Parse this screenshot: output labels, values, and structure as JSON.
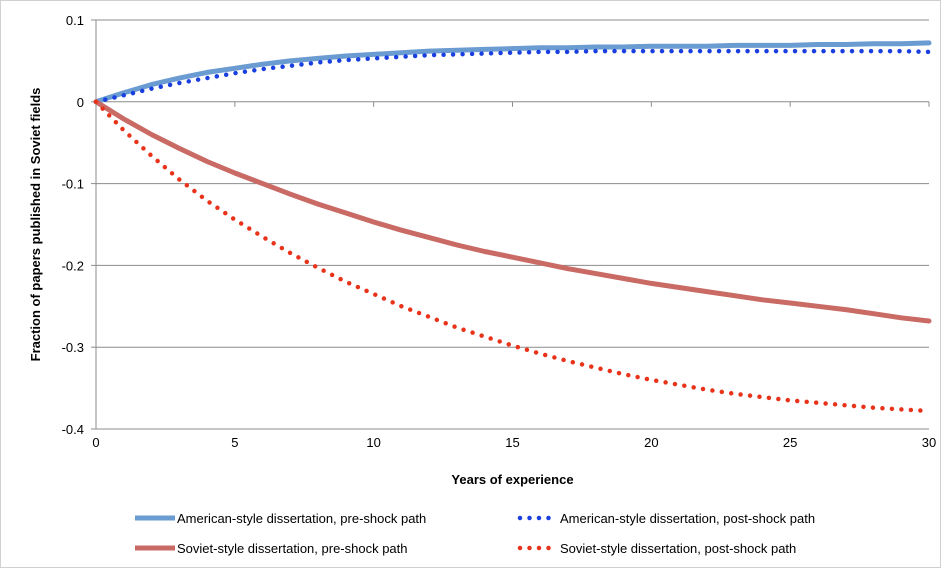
{
  "chart_data": {
    "type": "line",
    "title": "",
    "xlabel": "Years of experience",
    "ylabel": "Fraction of papers published in Soviet fields",
    "xlim": [
      0,
      30
    ],
    "ylim": [
      -0.4,
      0.1
    ],
    "x_ticks": [
      0,
      5,
      10,
      15,
      20,
      25,
      30
    ],
    "x_tick_labels": [
      "0",
      "5",
      "10",
      "15",
      "20",
      "25",
      "30"
    ],
    "y_ticks": [
      0.1,
      0,
      -0.1,
      -0.2,
      -0.3,
      -0.4
    ],
    "y_tick_labels": [
      "0.1",
      "0",
      "-0.1",
      "-0.2",
      "-0.3",
      "-0.4"
    ],
    "grid": "horizontal",
    "legend_position": "bottom",
    "x": [
      0,
      1,
      2,
      3,
      4,
      5,
      6,
      7,
      8,
      9,
      10,
      11,
      12,
      13,
      14,
      15,
      16,
      17,
      18,
      19,
      20,
      21,
      22,
      23,
      24,
      25,
      26,
      27,
      28,
      29,
      30
    ],
    "series": [
      {
        "name": "American-style dissertation, pre-shock path",
        "style": "solid",
        "color": "#6A9BD1",
        "values": [
          0,
          0.011,
          0.021,
          0.029,
          0.036,
          0.041,
          0.046,
          0.05,
          0.053,
          0.056,
          0.058,
          0.06,
          0.062,
          0.063,
          0.064,
          0.065,
          0.066,
          0.066,
          0.067,
          0.067,
          0.068,
          0.068,
          0.068,
          0.069,
          0.069,
          0.069,
          0.07,
          0.07,
          0.071,
          0.071,
          0.072
        ]
      },
      {
        "name": "American-style dissertation, post-shock path",
        "style": "dotted",
        "color": "#1A3FE0",
        "values": [
          0,
          0.008,
          0.016,
          0.023,
          0.029,
          0.035,
          0.04,
          0.044,
          0.048,
          0.051,
          0.053,
          0.055,
          0.057,
          0.058,
          0.059,
          0.06,
          0.061,
          0.061,
          0.062,
          0.062,
          0.062,
          0.062,
          0.062,
          0.062,
          0.062,
          0.062,
          0.062,
          0.062,
          0.062,
          0.062,
          0.061
        ]
      },
      {
        "name": "Soviet-style dissertation, pre-shock path",
        "style": "solid",
        "color": "#C96A64",
        "values": [
          0,
          -0.021,
          -0.04,
          -0.057,
          -0.073,
          -0.087,
          -0.1,
          -0.113,
          -0.125,
          -0.136,
          -0.147,
          -0.157,
          -0.166,
          -0.175,
          -0.183,
          -0.19,
          -0.197,
          -0.204,
          -0.21,
          -0.216,
          -0.222,
          -0.227,
          -0.232,
          -0.237,
          -0.242,
          -0.246,
          -0.25,
          -0.254,
          -0.259,
          -0.264,
          -0.268
        ]
      },
      {
        "name": "Soviet-style dissertation, post-shock path",
        "style": "dotted",
        "color": "#E8331A",
        "values": [
          0,
          -0.035,
          -0.066,
          -0.095,
          -0.121,
          -0.144,
          -0.165,
          -0.185,
          -0.203,
          -0.22,
          -0.235,
          -0.25,
          -0.263,
          -0.276,
          -0.287,
          -0.298,
          -0.308,
          -0.317,
          -0.325,
          -0.333,
          -0.34,
          -0.346,
          -0.352,
          -0.357,
          -0.361,
          -0.365,
          -0.368,
          -0.371,
          -0.374,
          -0.376,
          -0.378
        ]
      }
    ]
  }
}
